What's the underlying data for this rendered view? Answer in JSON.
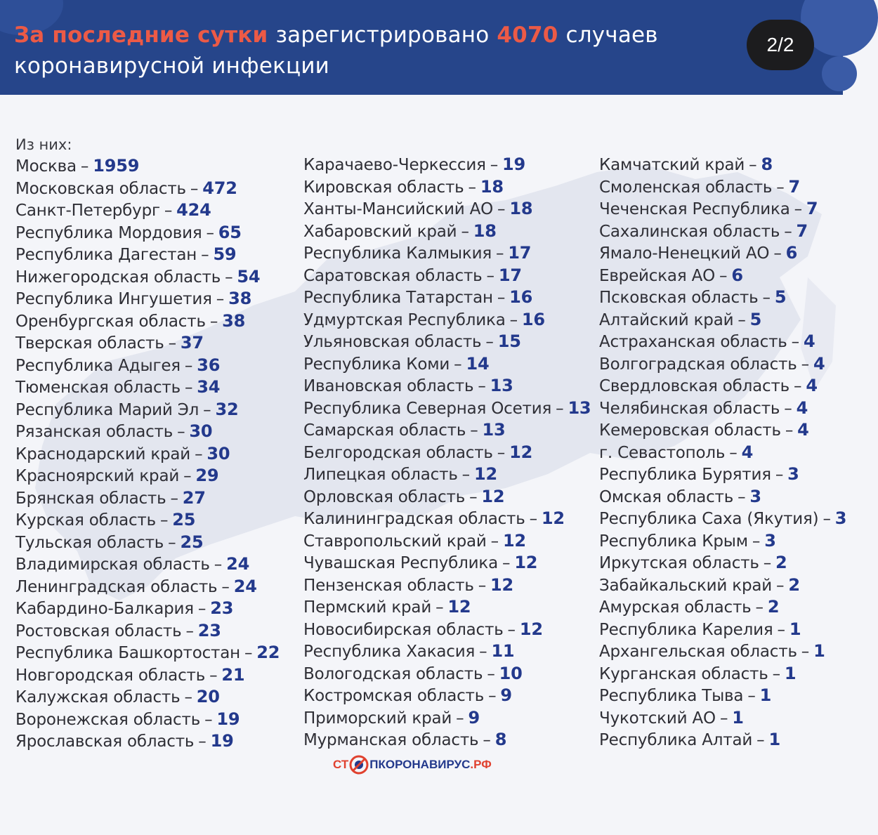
{
  "header": {
    "title_accent": "За последние сутки",
    "title_mid": "зарегистрировано",
    "title_number": "4070",
    "title_tail": "случаев",
    "title_line2": "коронавирусной инфекции",
    "page_indicator": "2/2"
  },
  "list_intro": "Из них:",
  "columns": [
    [
      {
        "region": "Москва",
        "value": "1959"
      },
      {
        "region": "Московская область",
        "value": "472"
      },
      {
        "region": "Санкт-Петербург",
        "value": "424"
      },
      {
        "region": "Республика Мордовия",
        "value": "65"
      },
      {
        "region": "Республика Дагестан",
        "value": "59"
      },
      {
        "region": "Нижегородская область",
        "value": "54"
      },
      {
        "region": "Республика Ингушетия",
        "value": "38"
      },
      {
        "region": "Оренбургская область",
        "value": "38"
      },
      {
        "region": "Тверская область",
        "value": "37"
      },
      {
        "region": "Республика Адыгея",
        "value": "36"
      },
      {
        "region": "Тюменская область",
        "value": "34"
      },
      {
        "region": "Республика Марий Эл",
        "value": "32"
      },
      {
        "region": "Рязанская область",
        "value": "30"
      },
      {
        "region": "Краснодарский край",
        "value": "30"
      },
      {
        "region": "Красноярский край",
        "value": "29"
      },
      {
        "region": "Брянская область",
        "value": "27"
      },
      {
        "region": "Курская область",
        "value": "25"
      },
      {
        "region": "Тульская область",
        "value": "25"
      },
      {
        "region": "Владимирская область",
        "value": "24"
      },
      {
        "region": "Ленинградская область",
        "value": "24"
      },
      {
        "region": "Кабардино-Балкария",
        "value": "23"
      },
      {
        "region": "Ростовская область",
        "value": "23"
      },
      {
        "region": "Республика Башкортостан",
        "value": "22"
      },
      {
        "region": "Новгородская область",
        "value": "21"
      },
      {
        "region": "Калужская область",
        "value": "20"
      },
      {
        "region": "Воронежская область",
        "value": "19"
      },
      {
        "region": "Ярославская область",
        "value": "19"
      }
    ],
    [
      {
        "region": "Карачаево-Черкессия",
        "value": "19"
      },
      {
        "region": "Кировская область",
        "value": "18"
      },
      {
        "region": "Ханты-Мансийский АО",
        "value": "18"
      },
      {
        "region": "Хабаровский край",
        "value": "18"
      },
      {
        "region": "Республика Калмыкия",
        "value": "17"
      },
      {
        "region": "Саратовская область",
        "value": "17"
      },
      {
        "region": "Республика Татарстан",
        "value": "16"
      },
      {
        "region": "Удмуртская Республика",
        "value": "16"
      },
      {
        "region": "Ульяновская область",
        "value": "15"
      },
      {
        "region": "Республика Коми",
        "value": "14"
      },
      {
        "region": "Ивановская область",
        "value": "13"
      },
      {
        "region": "Республика Северная Осетия",
        "value": "13"
      },
      {
        "region": "Самарская область",
        "value": "13"
      },
      {
        "region": "Белгородская область",
        "value": "12"
      },
      {
        "region": "Липецкая область",
        "value": "12"
      },
      {
        "region": "Орловская область",
        "value": "12"
      },
      {
        "region": "Калининградская область",
        "value": "12"
      },
      {
        "region": "Ставропольский край",
        "value": "12"
      },
      {
        "region": "Чувашская Республика",
        "value": "12"
      },
      {
        "region": "Пензенская область",
        "value": "12"
      },
      {
        "region": "Пермский край",
        "value": "12"
      },
      {
        "region": "Новосибирская область",
        "value": "12"
      },
      {
        "region": "Республика Хакасия",
        "value": "11"
      },
      {
        "region": "Вологодская область",
        "value": "10"
      },
      {
        "region": "Костромская область",
        "value": "9"
      },
      {
        "region": "Приморский край",
        "value": "9"
      },
      {
        "region": "Мурманская область",
        "value": "8"
      }
    ],
    [
      {
        "region": "Камчатский край",
        "value": "8"
      },
      {
        "region": "Смоленская область",
        "value": "7"
      },
      {
        "region": "Чеченская Республика",
        "value": "7"
      },
      {
        "region": "Сахалинская область",
        "value": "7"
      },
      {
        "region": "Ямало-Ненецкий АО",
        "value": "6"
      },
      {
        "region": "Еврейская АО",
        "value": "6"
      },
      {
        "region": "Псковская область",
        "value": "5"
      },
      {
        "region": "Алтайский край",
        "value": "5"
      },
      {
        "region": "Астраханская область",
        "value": "4"
      },
      {
        "region": "Волгоградская область",
        "value": "4"
      },
      {
        "region": "Свердловская область",
        "value": "4"
      },
      {
        "region": "Челябинская область",
        "value": "4"
      },
      {
        "region": "Кемеровская область",
        "value": "4"
      },
      {
        "region": "г. Севастополь",
        "value": "4"
      },
      {
        "region": "Республика Бурятия",
        "value": "3"
      },
      {
        "region": "Омская область",
        "value": "3"
      },
      {
        "region": "Республика Саха (Якутия)",
        "value": "3"
      },
      {
        "region": "Республика Крым",
        "value": "3"
      },
      {
        "region": "Иркутская область",
        "value": "2"
      },
      {
        "region": "Забайкальский край",
        "value": "2"
      },
      {
        "region": "Амурская область",
        "value": "2"
      },
      {
        "region": "Республика Карелия",
        "value": "1"
      },
      {
        "region": "Архангельская область",
        "value": "1"
      },
      {
        "region": "Курганская область",
        "value": "1"
      },
      {
        "region": "Республика Тыва",
        "value": "1"
      },
      {
        "region": "Чукотский АО",
        "value": "1"
      },
      {
        "region": "Республика Алтай",
        "value": "1"
      }
    ]
  ],
  "logo": {
    "part1": "СТ",
    "part2": "ПКОРОНАВИРУС",
    "part3": ".РФ"
  },
  "colors": {
    "header_bg": "#26458a",
    "accent_red": "#ec5a46",
    "value_blue": "#23398c",
    "page_bg": "#f4f5f9",
    "map": "#e3e6ef"
  }
}
